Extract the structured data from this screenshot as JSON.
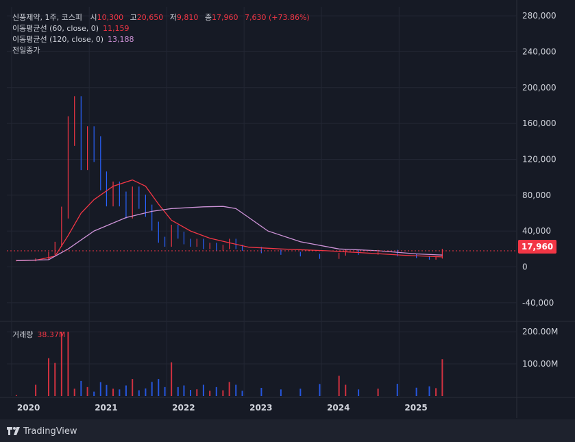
{
  "header": {
    "symbol": "신풍제약, 1주, 코스피",
    "open_label": "시",
    "open": "10,300",
    "high_label": "고",
    "high": "20,650",
    "low_label": "저",
    "low": "9,810",
    "close_label": "종",
    "close": "17,960",
    "change": "7,630 (+73.86%)",
    "ma60_label": "이동평균선 (60, close, 0)",
    "ma60_value": "11,159",
    "ma120_label": "이동평균선 (120, close, 0)",
    "ma120_value": "13,188",
    "prev_close_label": "전일종가"
  },
  "volume": {
    "label": "거래량",
    "value": "38.37M"
  },
  "price_tag": "17,960",
  "branding": "TradingView",
  "colors": {
    "up": "#f23645",
    "down": "#2962ff",
    "ma60": "#f23645",
    "ma120": "#ce93d8",
    "bg": "#161a25"
  },
  "chart_data": {
    "type": "line",
    "title": "신풍제약, 1주, 코스피",
    "x_tick_labels": [
      "2020",
      "2021",
      "2022",
      "2023",
      "2024",
      "2025"
    ],
    "y_tick_labels": [
      "280,000",
      "240,000",
      "200,000",
      "160,000",
      "120,000",
      "80,000",
      "40,000",
      "0",
      "-40,000"
    ],
    "ylim": [
      -60000,
      290000
    ],
    "volume_tick_labels": [
      "200.00M",
      "100.00M"
    ],
    "last_price": 17960,
    "series": [
      {
        "name": "종가",
        "x": [
          "2020-01",
          "2020-04",
          "2020-06",
          "2020-07",
          "2020-08",
          "2020-09",
          "2020-10",
          "2020-11",
          "2020-12",
          "2021-01",
          "2021-02",
          "2021-03",
          "2021-04",
          "2021-05",
          "2021-06",
          "2021-07",
          "2021-08",
          "2021-09",
          "2021-10",
          "2021-11",
          "2021-12",
          "2022-01",
          "2022-02",
          "2022-03",
          "2022-04",
          "2022-05",
          "2022-06",
          "2022-07",
          "2022-08",
          "2022-09",
          "2022-10",
          "2022-11",
          "2022-12",
          "2023-03",
          "2023-06",
          "2023-09",
          "2023-12",
          "2024-03",
          "2024-04",
          "2024-06",
          "2024-09",
          "2024-12",
          "2025-03",
          "2025-05",
          "2025-06",
          "2025-07"
        ],
        "y": [
          7000,
          8500,
          15000,
          25000,
          60000,
          150000,
          170000,
          120000,
          140000,
          130000,
          95000,
          75000,
          85000,
          75000,
          60000,
          80000,
          72000,
          62000,
          45000,
          30000,
          25000,
          42000,
          35000,
          28000,
          25000,
          28000,
          22000,
          24000,
          20000,
          22000,
          28000,
          22000,
          20000,
          17000,
          15000,
          13000,
          10000,
          14000,
          17000,
          15000,
          17000,
          13000,
          11000,
          9000,
          10300,
          17960
        ]
      },
      {
        "name": "이동평균선 (60, close, 0)",
        "x": [
          "2020-01",
          "2020-04",
          "2020-07",
          "2020-09",
          "2020-11",
          "2021-01",
          "2021-04",
          "2021-07",
          "2021-09",
          "2021-11",
          "2022-01",
          "2022-04",
          "2022-07",
          "2022-10",
          "2023-01",
          "2023-06",
          "2024-01",
          "2024-06",
          "2025-01",
          "2025-07"
        ],
        "y": [
          7000,
          7500,
          12000,
          35000,
          60000,
          75000,
          90000,
          97000,
          90000,
          70000,
          52000,
          40000,
          32000,
          27000,
          22000,
          20000,
          18000,
          16000,
          13000,
          11159
        ]
      },
      {
        "name": "이동평균선 (120, close, 0)",
        "x": [
          "2020-01",
          "2020-06",
          "2020-09",
          "2021-01",
          "2021-06",
          "2021-10",
          "2022-01",
          "2022-06",
          "2022-09",
          "2022-11",
          "2023-01",
          "2023-04",
          "2023-09",
          "2024-03",
          "2024-09",
          "2025-03",
          "2025-07"
        ],
        "y": [
          7000,
          8000,
          20000,
          40000,
          55000,
          62000,
          65000,
          67000,
          67500,
          65000,
          55000,
          40000,
          28000,
          20000,
          18000,
          14500,
          13188
        ]
      }
    ]
  }
}
